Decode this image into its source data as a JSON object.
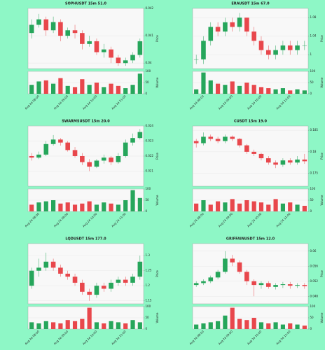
{
  "chart_data": [
    {
      "type": "candlestick",
      "title": "SOPHUSDT 15m 51.0",
      "ylabel": "Price",
      "vlabel": "Volume",
      "grid": true,
      "up_color": "#26a65b",
      "down_color": "#e8474c",
      "categories": [
        null,
        "Aug 24 08:00",
        null,
        null,
        null,
        "Aug 24 09:00",
        null,
        null,
        null,
        "Aug 24 10:00",
        null,
        null,
        null,
        "Aug 24 11:00",
        null,
        null
      ],
      "open": [
        0.0411,
        0.0414,
        0.0416,
        0.0412,
        0.0415,
        0.041,
        0.0412,
        0.0411,
        0.0407,
        0.0408,
        0.0404,
        0.0405,
        0.0402,
        0.04,
        0.0401,
        0.0403
      ],
      "high": [
        0.0416,
        0.0418,
        0.0417,
        0.0417,
        0.0416,
        0.0413,
        0.0414,
        0.0412,
        0.041,
        0.0409,
        0.0407,
        0.0406,
        0.0403,
        0.0402,
        0.0404,
        0.0409
      ],
      "low": [
        0.0409,
        0.0413,
        0.041,
        0.0411,
        0.0408,
        0.0409,
        0.0409,
        0.0405,
        0.0406,
        0.0403,
        0.0402,
        0.04,
        0.0399,
        0.0399,
        0.04,
        0.0402
      ],
      "close": [
        0.0414,
        0.0416,
        0.0412,
        0.0415,
        0.041,
        0.0412,
        0.0411,
        0.0407,
        0.0408,
        0.0404,
        0.0405,
        0.0402,
        0.04,
        0.0401,
        0.0403,
        0.0408
      ],
      "volume": [
        40,
        55,
        60,
        45,
        70,
        35,
        30,
        65,
        40,
        50,
        30,
        45,
        35,
        25,
        40,
        90
      ],
      "ylim": [
        0.0398,
        0.042
      ],
      "yticks": [
        0.04,
        0.041,
        0.042
      ],
      "vlim": [
        0,
        100
      ],
      "vticks": [
        0,
        50,
        100
      ]
    },
    {
      "type": "candlestick",
      "title": "ERAUSDT 15m 67.0",
      "ylabel": "Price",
      "vlabel": "Volume",
      "grid": true,
      "up_color": "#26a65b",
      "down_color": "#e8474c",
      "categories": [
        null,
        "Aug 24 08:00",
        null,
        null,
        null,
        "Aug 24 09:00",
        null,
        null,
        null,
        "Aug 24 10:00",
        null,
        null,
        null,
        "Aug 24 11:00",
        null,
        null
      ],
      "open": [
        0.99,
        0.99,
        1.03,
        1.06,
        1.05,
        1.07,
        1.06,
        1.08,
        1.05,
        1.03,
        1.01,
        1.0,
        1.01,
        1.02,
        1.01,
        1.02
      ],
      "high": [
        1.0,
        1.04,
        1.07,
        1.07,
        1.08,
        1.08,
        1.09,
        1.08,
        1.06,
        1.04,
        1.02,
        1.02,
        1.03,
        1.03,
        1.03,
        1.03
      ],
      "low": [
        0.98,
        0.98,
        1.02,
        1.04,
        1.04,
        1.05,
        1.05,
        1.04,
        1.02,
        1.0,
        0.99,
        0.99,
        1.0,
        1.0,
        1.0,
        1.01
      ],
      "close": [
        0.99,
        1.03,
        1.06,
        1.05,
        1.07,
        1.06,
        1.08,
        1.05,
        1.03,
        1.01,
        1.0,
        1.01,
        1.02,
        1.01,
        1.02,
        1.02
      ],
      "volume": [
        20,
        95,
        60,
        45,
        40,
        55,
        35,
        50,
        40,
        30,
        25,
        20,
        25,
        15,
        20,
        15
      ],
      "ylim": [
        0.97,
        1.1
      ],
      "yticks": [
        1,
        1.04,
        1.08
      ],
      "vlim": [
        0,
        100
      ],
      "vticks": [
        0,
        50,
        100
      ]
    },
    {
      "type": "candlestick",
      "title": "SWARMSUSDT 15m 20.0",
      "ylabel": "Price",
      "vlabel": "Volume",
      "grid": true,
      "up_color": "#26a65b",
      "down_color": "#e8474c",
      "categories": [
        null,
        "Aug 24 08:00",
        null,
        null,
        null,
        "Aug 24 09:00",
        null,
        null,
        null,
        "Aug 24 10:00",
        null,
        null,
        null,
        "Aug 24 11:00",
        null,
        null
      ],
      "open": [
        0.022,
        0.0219,
        0.0221,
        0.0228,
        0.0231,
        0.0229,
        0.0224,
        0.022,
        0.0216,
        0.0213,
        0.0217,
        0.0219,
        0.0216,
        0.022,
        0.0229,
        0.0232
      ],
      "high": [
        0.0222,
        0.0223,
        0.023,
        0.0234,
        0.0232,
        0.023,
        0.0226,
        0.0222,
        0.0218,
        0.0218,
        0.0221,
        0.022,
        0.0222,
        0.0231,
        0.0235,
        0.0238
      ],
      "low": [
        0.0217,
        0.0218,
        0.022,
        0.0227,
        0.0227,
        0.0223,
        0.0219,
        0.0214,
        0.021,
        0.0212,
        0.0215,
        0.0214,
        0.0215,
        0.0219,
        0.0227,
        0.0231
      ],
      "close": [
        0.0219,
        0.0221,
        0.0228,
        0.0231,
        0.0229,
        0.0224,
        0.022,
        0.0216,
        0.0213,
        0.0217,
        0.0219,
        0.0216,
        0.022,
        0.0229,
        0.0232,
        0.0236
      ],
      "volume": [
        30,
        40,
        45,
        50,
        35,
        40,
        30,
        35,
        45,
        30,
        40,
        35,
        30,
        50,
        95,
        60
      ],
      "ylim": [
        0.02,
        0.024
      ],
      "yticks": [
        0.021,
        0.022,
        0.023,
        0.024
      ],
      "vlim": [
        0,
        100
      ],
      "vticks": [
        0,
        50,
        100
      ]
    },
    {
      "type": "candlestick",
      "title": "CUSDT 15m 19.0",
      "ylabel": "Price",
      "vlabel": "Volume",
      "grid": true,
      "up_color": "#26a65b",
      "down_color": "#e8474c",
      "categories": [
        null,
        "Aug 24 08:00",
        null,
        null,
        null,
        "Aug 24 09:00",
        null,
        null,
        null,
        "Aug 24 10:00",
        null,
        null,
        null,
        "Aug 24 11:00",
        null,
        null
      ],
      "open": [
        0.1825,
        0.182,
        0.1835,
        0.183,
        0.1825,
        0.1835,
        0.183,
        0.1815,
        0.18,
        0.1795,
        0.1785,
        0.1775,
        0.177,
        0.178,
        0.1775,
        0.1782
      ],
      "high": [
        0.183,
        0.1845,
        0.184,
        0.1835,
        0.184,
        0.1838,
        0.1832,
        0.1818,
        0.1805,
        0.1798,
        0.179,
        0.178,
        0.1785,
        0.1785,
        0.179,
        0.1795
      ],
      "low": [
        0.181,
        0.1815,
        0.1825,
        0.182,
        0.182,
        0.1825,
        0.181,
        0.1795,
        0.179,
        0.178,
        0.177,
        0.1762,
        0.1765,
        0.177,
        0.177,
        0.1772
      ],
      "close": [
        0.182,
        0.1835,
        0.183,
        0.1825,
        0.1835,
        0.183,
        0.1815,
        0.18,
        0.1795,
        0.1785,
        0.1775,
        0.177,
        0.178,
        0.1775,
        0.1782,
        0.1778
      ],
      "volume": [
        35,
        50,
        30,
        45,
        40,
        55,
        35,
        50,
        45,
        40,
        30,
        55,
        35,
        40,
        30,
        25
      ],
      "ylim": [
        0.172,
        0.186
      ],
      "yticks": [
        0.175,
        0.18,
        0.185
      ],
      "vlim": [
        0,
        100
      ],
      "vticks": [
        0,
        50,
        100
      ]
    },
    {
      "type": "candlestick",
      "title": "LQDUSDT 15m 177.0",
      "ylabel": "Price",
      "vlabel": "Volume",
      "grid": true,
      "up_color": "#26a65b",
      "down_color": "#e8474c",
      "categories": [
        null,
        "Aug 24 08:00",
        null,
        null,
        null,
        "Aug 24 09:00",
        null,
        null,
        null,
        "Aug 24 10:00",
        null,
        null,
        null,
        "Aug 24 11:00",
        null,
        null
      ],
      "open": [
        1.2,
        1.25,
        1.26,
        1.28,
        1.26,
        1.24,
        1.23,
        1.21,
        1.18,
        1.17,
        1.2,
        1.19,
        1.21,
        1.22,
        1.21,
        1.23
      ],
      "high": [
        1.26,
        1.29,
        1.31,
        1.29,
        1.27,
        1.25,
        1.24,
        1.22,
        1.19,
        1.21,
        1.21,
        1.22,
        1.23,
        1.23,
        1.24,
        1.3
      ],
      "low": [
        1.19,
        1.23,
        1.25,
        1.25,
        1.23,
        1.22,
        1.2,
        1.17,
        1.15,
        1.16,
        1.18,
        1.18,
        1.2,
        1.2,
        1.2,
        1.22
      ],
      "close": [
        1.25,
        1.26,
        1.28,
        1.26,
        1.24,
        1.23,
        1.21,
        1.18,
        1.17,
        1.2,
        1.19,
        1.21,
        1.22,
        1.21,
        1.23,
        1.28
      ],
      "volume": [
        30,
        25,
        35,
        30,
        25,
        40,
        35,
        45,
        95,
        30,
        25,
        35,
        30,
        25,
        40,
        30
      ],
      "ylim": [
        1.14,
        1.34
      ],
      "yticks": [
        1.15,
        1.2,
        1.25,
        1.3
      ],
      "vlim": [
        0,
        100
      ],
      "vticks": [
        0,
        50,
        100
      ]
    },
    {
      "type": "candlestick",
      "title": "GRIFFAINUSDT 15m 12.0",
      "ylabel": "Price",
      "vlabel": "Volume",
      "grid": true,
      "up_color": "#26a65b",
      "down_color": "#e8474c",
      "categories": [
        null,
        "Aug 24 08:00",
        null,
        null,
        null,
        "Aug 24 09:00",
        null,
        null,
        null,
        "Aug 24 10:00",
        null,
        null,
        null,
        "Aug 24 11:00",
        null,
        null
      ],
      "open": [
        0.051,
        0.0515,
        0.052,
        0.053,
        0.0545,
        0.058,
        0.057,
        0.0545,
        0.052,
        0.051,
        0.0515,
        0.0505,
        0.051,
        0.0512,
        0.0508,
        0.051
      ],
      "high": [
        0.052,
        0.0525,
        0.0535,
        0.055,
        0.06,
        0.059,
        0.0575,
        0.055,
        0.0525,
        0.052,
        0.052,
        0.0515,
        0.0518,
        0.0518,
        0.0515,
        0.0515
      ],
      "low": [
        0.0505,
        0.051,
        0.0515,
        0.0525,
        0.054,
        0.056,
        0.054,
        0.051,
        0.048,
        0.05,
        0.05,
        0.0498,
        0.0502,
        0.05,
        0.0502,
        0.05
      ],
      "close": [
        0.0515,
        0.052,
        0.053,
        0.0545,
        0.058,
        0.057,
        0.0545,
        0.052,
        0.051,
        0.0515,
        0.0505,
        0.051,
        0.0512,
        0.0508,
        0.051,
        0.0507
      ],
      "volume": [
        20,
        25,
        30,
        35,
        60,
        95,
        45,
        40,
        50,
        30,
        25,
        30,
        20,
        25,
        20,
        15
      ],
      "ylim": [
        0.046,
        0.062
      ],
      "yticks": [
        0.048,
        0.052,
        0.056,
        0.06
      ],
      "vlim": [
        0,
        100
      ],
      "vticks": [
        0,
        50,
        100
      ]
    }
  ]
}
